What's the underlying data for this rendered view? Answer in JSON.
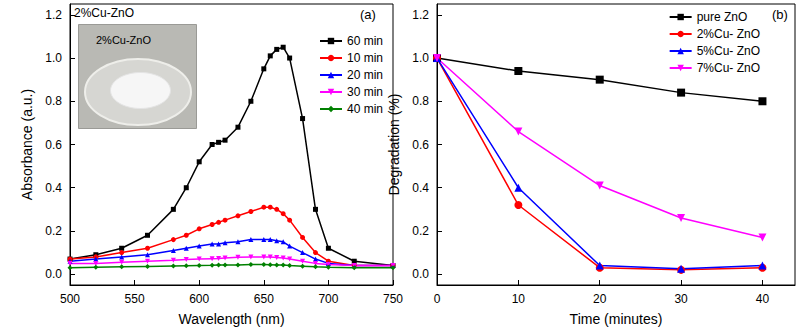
{
  "chart_data": [
    {
      "type": "line",
      "title": "2%Cu-ZnO",
      "annotations": [
        "(a)",
        "2%Cu-ZnO"
      ],
      "x_label": "Wavelength (nm)",
      "y_label": "Absorbance (a.u.)",
      "x": [
        500,
        520,
        540,
        560,
        580,
        590,
        600,
        610,
        615,
        620,
        630,
        640,
        650,
        655,
        660,
        665,
        670,
        680,
        690,
        700,
        720,
        750
      ],
      "series": [
        {
          "name": "60 min",
          "color": "#000000",
          "marker": "square",
          "values": [
            0.07,
            0.09,
            0.12,
            0.18,
            0.3,
            0.4,
            0.52,
            0.6,
            0.61,
            0.62,
            0.68,
            0.8,
            0.95,
            1.01,
            1.04,
            1.05,
            1.0,
            0.72,
            0.3,
            0.12,
            0.06,
            0.04
          ]
        },
        {
          "name": "10 min",
          "color": "#ff0000",
          "marker": "circle",
          "values": [
            0.07,
            0.08,
            0.1,
            0.12,
            0.16,
            0.18,
            0.21,
            0.23,
            0.24,
            0.25,
            0.27,
            0.29,
            0.31,
            0.31,
            0.3,
            0.28,
            0.25,
            0.17,
            0.1,
            0.06,
            0.04,
            0.04
          ]
        },
        {
          "name": "20 min",
          "color": "#0000ff",
          "marker": "triangle",
          "values": [
            0.06,
            0.07,
            0.08,
            0.09,
            0.11,
            0.12,
            0.13,
            0.14,
            0.14,
            0.145,
            0.15,
            0.16,
            0.16,
            0.16,
            0.155,
            0.15,
            0.13,
            0.1,
            0.07,
            0.05,
            0.04,
            0.04
          ]
        },
        {
          "name": "30 min",
          "color": "#ff00ff",
          "marker": "triangle_down",
          "values": [
            0.05,
            0.05,
            0.055,
            0.06,
            0.065,
            0.068,
            0.07,
            0.072,
            0.073,
            0.075,
            0.078,
            0.08,
            0.08,
            0.079,
            0.077,
            0.075,
            0.07,
            0.06,
            0.05,
            0.045,
            0.04,
            0.04
          ]
        },
        {
          "name": "40 min",
          "color": "#008000",
          "marker": "diamond",
          "values": [
            0.03,
            0.032,
            0.034,
            0.036,
            0.038,
            0.039,
            0.04,
            0.041,
            0.042,
            0.042,
            0.043,
            0.045,
            0.045,
            0.044,
            0.043,
            0.042,
            0.04,
            0.037,
            0.034,
            0.032,
            0.03,
            0.03
          ]
        }
      ],
      "xlim": [
        500,
        750
      ],
      "xticks": [
        500,
        550,
        600,
        650,
        700,
        750
      ],
      "ylim": [
        -0.05,
        1.25
      ],
      "yticks": [
        {
          "value": 0,
          "label": "0.0"
        },
        0.2,
        0.4,
        0.6,
        0.8,
        {
          "value": 1,
          "label": "1.0"
        },
        1.2
      ],
      "grid": false,
      "legend": "upper right"
    },
    {
      "type": "line",
      "annotations": [
        "(b)"
      ],
      "x_label": "Time (minutes)",
      "y_label": "Degradation (%)",
      "x": [
        0,
        10,
        20,
        30,
        40
      ],
      "series": [
        {
          "name": "pure ZnO",
          "color": "#000000",
          "marker": "square",
          "values": [
            1.0,
            0.94,
            0.9,
            0.84,
            0.8
          ]
        },
        {
          "name": "2%Cu- ZnO",
          "color": "#ff0000",
          "marker": "circle",
          "values": [
            1.0,
            0.32,
            0.03,
            0.02,
            0.03
          ]
        },
        {
          "name": "5%Cu- ZnO",
          "color": "#0000ff",
          "marker": "triangle",
          "values": [
            1.0,
            0.4,
            0.04,
            0.025,
            0.04
          ]
        },
        {
          "name": "7%Cu- ZnO",
          "color": "#ff00ff",
          "marker": "triangle_down",
          "values": [
            1.0,
            0.66,
            0.41,
            0.26,
            0.17
          ]
        }
      ],
      "xlim": [
        0,
        44
      ],
      "xticks": [
        0,
        10,
        20,
        30,
        40
      ],
      "ylim": [
        -0.05,
        1.25
      ],
      "yticks": [
        {
          "value": 0,
          "label": "0.0"
        },
        0.2,
        0.4,
        0.6,
        0.8,
        {
          "value": 1,
          "label": "1.0"
        },
        1.2
      ],
      "grid": false,
      "legend": "upper right"
    }
  ]
}
